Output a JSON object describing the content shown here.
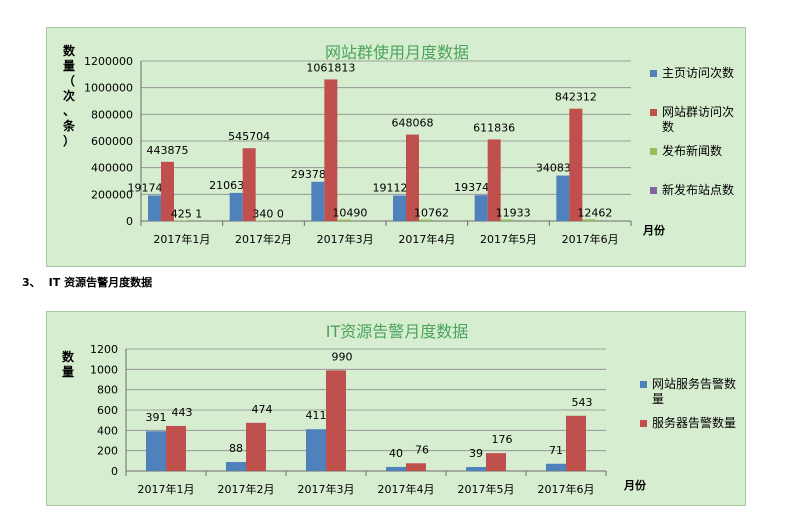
{
  "section_heading": {
    "number": "3、",
    "text": "IT 资源告警月度数据"
  },
  "chart_data": [
    {
      "type": "bar",
      "title": "网站群使用月度数据",
      "ylabel": "数量（次、条）",
      "xlabel": "月份",
      "categories": [
        "2017年1月",
        "2017年2月",
        "2017年3月",
        "2017年4月",
        "2017年5月",
        "2017年6月"
      ],
      "series": [
        {
          "name": "主页访问次数",
          "color": "#4f81bd",
          "values": [
            191745,
            210631,
            293784,
            191125,
            193741,
            340837
          ],
          "labels": [
            "191745",
            "210631",
            "293784",
            "191125",
            "193741",
            "340837"
          ]
        },
        {
          "name": "网站群访问次数",
          "color": "#c0504d",
          "values": [
            443875,
            545704,
            1061813,
            648068,
            611836,
            842312
          ],
          "labels": [
            "443875",
            "545704",
            "1061813",
            "648068",
            "611836",
            "842312"
          ]
        },
        {
          "name": "发布新闻数",
          "color": "#9bbb59",
          "values": [
            4251,
            3400,
            10490,
            10762,
            11933,
            12462
          ],
          "labels": [
            "425 1",
            "340 0",
            "10490",
            "10762",
            "11933",
            "12462"
          ]
        },
        {
          "name": "新发布站点数",
          "color": "#8064a2",
          "values": [
            0,
            0,
            0,
            0,
            0,
            0
          ],
          "labels": [
            "",
            "",
            "",
            "",
            "",
            ""
          ]
        }
      ],
      "ylim": [
        0,
        1200000
      ],
      "yticks": [
        "0",
        "200000",
        "400000",
        "600000",
        "800000",
        "1000000",
        "1200000"
      ],
      "grid": true,
      "legend_position": "right"
    },
    {
      "type": "bar",
      "title": "IT资源告警月度数据",
      "ylabel": "数量",
      "xlabel": "月份",
      "categories": [
        "2017年1月",
        "2017年2月",
        "2017年3月",
        "2017年4月",
        "2017年5月",
        "2017年6月"
      ],
      "series": [
        {
          "name": "网站服务告警数量",
          "color": "#4f81bd",
          "values": [
            391,
            88,
            411,
            40,
            39,
            71
          ],
          "labels": [
            "391",
            "88",
            "411",
            "40",
            "39",
            "71"
          ]
        },
        {
          "name": "服务器告警数量",
          "color": "#c0504d",
          "values": [
            443,
            474,
            990,
            76,
            176,
            543
          ],
          "labels": [
            "443",
            "474",
            "990",
            "76",
            "176",
            "543"
          ]
        }
      ],
      "ylim": [
        0,
        1200
      ],
      "yticks": [
        "0",
        "200",
        "400",
        "600",
        "800",
        "1000",
        "1200"
      ],
      "grid": true,
      "legend_position": "right"
    }
  ]
}
